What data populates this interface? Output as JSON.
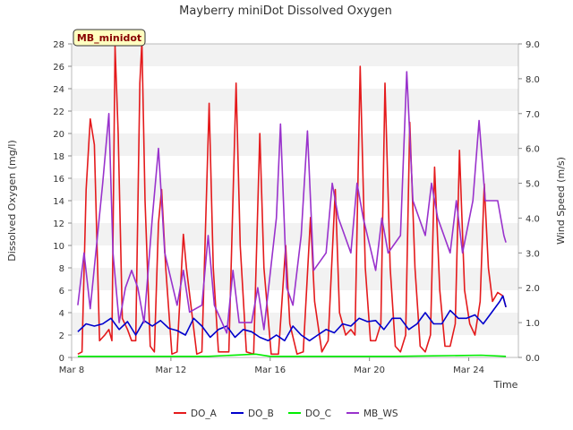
{
  "chart_data": {
    "type": "line",
    "title": "Mayberry miniDot Dissolved Oxygen",
    "xlabel": "Time",
    "ylabel": "Dissolved Oxygen (mg/l)",
    "y2label": "Wind Speed (m/s)",
    "site_label": "MB_minidot",
    "x_range": [
      "2024-03-08",
      "2024-03-26"
    ],
    "ylim": [
      0,
      28
    ],
    "y2lim": [
      0,
      9
    ],
    "x_ticks": [
      {
        "date": "2024-03-08",
        "label": "Mar 8"
      },
      {
        "date": "2024-03-12",
        "label": "Mar 12"
      },
      {
        "date": "2024-03-16",
        "label": "Mar 16"
      },
      {
        "date": "2024-03-20",
        "label": "Mar 20"
      },
      {
        "date": "2024-03-24",
        "label": "Mar 24"
      }
    ],
    "y_ticks": [
      0,
      2,
      4,
      6,
      8,
      10,
      12,
      14,
      16,
      18,
      20,
      22,
      24,
      26,
      28
    ],
    "y2_ticks": [
      "0.0",
      "1.0",
      "2.0",
      "3.0",
      "4.0",
      "5.0",
      "6.0",
      "7.0",
      "8.0",
      "9.0"
    ],
    "grid": "horizontal bands",
    "legend_position": "bottom",
    "series": [
      {
        "name": "DO_A",
        "color": "#e41a1c",
        "axis": "left",
        "points": [
          [
            "2024-03-08T06:00",
            0.3
          ],
          [
            "2024-03-08T10:00",
            0.5
          ],
          [
            "2024-03-08T14:00",
            15
          ],
          [
            "2024-03-08T18:00",
            21.3
          ],
          [
            "2024-03-08T22:00",
            19
          ],
          [
            "2024-03-09T03:00",
            1.5
          ],
          [
            "2024-03-09T08:00",
            2
          ],
          [
            "2024-03-09T12:00",
            2.5
          ],
          [
            "2024-03-09T15:00",
            1.5
          ],
          [
            "2024-03-09T18:00",
            27.8
          ],
          [
            "2024-03-09T21:00",
            20
          ],
          [
            "2024-03-10T01:00",
            3.5
          ],
          [
            "2024-03-10T06:00",
            2.5
          ],
          [
            "2024-03-10T10:00",
            1.5
          ],
          [
            "2024-03-10T14:00",
            1.5
          ],
          [
            "2024-03-10T18:00",
            24.5
          ],
          [
            "2024-03-10T20:00",
            28.2
          ],
          [
            "2024-03-10T23:00",
            14
          ],
          [
            "2024-03-11T04:00",
            1
          ],
          [
            "2024-03-11T08:00",
            0.5
          ],
          [
            "2024-03-11T12:00",
            12
          ],
          [
            "2024-03-11T15:00",
            15
          ],
          [
            "2024-03-11T19:00",
            8
          ],
          [
            "2024-03-12T01:00",
            0.3
          ],
          [
            "2024-03-12T06:00",
            0.5
          ],
          [
            "2024-03-12T12:00",
            11
          ],
          [
            "2024-03-12T15:00",
            8
          ],
          [
            "2024-03-13T01:00",
            0.3
          ],
          [
            "2024-03-13T06:00",
            0.5
          ],
          [
            "2024-03-13T13:00",
            22.7
          ],
          [
            "2024-03-13T17:00",
            8
          ],
          [
            "2024-03-13T22:00",
            0.5
          ],
          [
            "2024-03-14T08:00",
            0.5
          ],
          [
            "2024-03-14T15:00",
            24.5
          ],
          [
            "2024-03-14T19:00",
            10
          ],
          [
            "2024-03-15T01:00",
            0.5
          ],
          [
            "2024-03-15T08:00",
            0.3
          ],
          [
            "2024-03-15T14:00",
            20
          ],
          [
            "2024-03-15T18:00",
            8
          ],
          [
            "2024-03-16T01:00",
            0.3
          ],
          [
            "2024-03-16T08:00",
            0.3
          ],
          [
            "2024-03-16T15:00",
            10
          ],
          [
            "2024-03-16T19:00",
            3
          ],
          [
            "2024-03-17T02:00",
            0.3
          ],
          [
            "2024-03-17T08:00",
            0.5
          ],
          [
            "2024-03-17T15:00",
            12.5
          ],
          [
            "2024-03-17T19:00",
            5
          ],
          [
            "2024-03-18T02:00",
            0.5
          ],
          [
            "2024-03-18T08:00",
            1.5
          ],
          [
            "2024-03-18T15:00",
            15
          ],
          [
            "2024-03-18T19:00",
            4
          ],
          [
            "2024-03-19T01:00",
            2
          ],
          [
            "2024-03-19T06:00",
            2.5
          ],
          [
            "2024-03-19T10:00",
            2
          ],
          [
            "2024-03-19T15:00",
            26
          ],
          [
            "2024-03-19T20:00",
            8
          ],
          [
            "2024-03-20T01:00",
            1.5
          ],
          [
            "2024-03-20T06:00",
            1.5
          ],
          [
            "2024-03-20T11:00",
            3
          ],
          [
            "2024-03-20T15:00",
            24.5
          ],
          [
            "2024-03-20T20:00",
            8
          ],
          [
            "2024-03-21T01:00",
            1
          ],
          [
            "2024-03-21T06:00",
            0.5
          ],
          [
            "2024-03-21T11:00",
            2
          ],
          [
            "2024-03-21T15:00",
            21
          ],
          [
            "2024-03-21T20:00",
            8
          ],
          [
            "2024-03-22T01:00",
            1
          ],
          [
            "2024-03-22T06:00",
            0.5
          ],
          [
            "2024-03-22T11:00",
            2
          ],
          [
            "2024-03-22T15:00",
            17
          ],
          [
            "2024-03-22T20:00",
            6
          ],
          [
            "2024-03-23T01:00",
            1
          ],
          [
            "2024-03-23T06:00",
            1
          ],
          [
            "2024-03-23T11:00",
            3
          ],
          [
            "2024-03-23T15:00",
            18.5
          ],
          [
            "2024-03-23T20:00",
            6
          ],
          [
            "2024-03-24T01:00",
            3
          ],
          [
            "2024-03-24T06:00",
            2
          ],
          [
            "2024-03-24T11:00",
            5
          ],
          [
            "2024-03-24T15:00",
            15.5
          ],
          [
            "2024-03-24T19:00",
            8
          ],
          [
            "2024-03-24T23:00",
            5
          ],
          [
            "2024-03-25T04:00",
            5.8
          ],
          [
            "2024-03-25T09:00",
            5.5
          ],
          [
            "2024-03-25T12:00",
            4.5
          ]
        ]
      },
      {
        "name": "DO_B",
        "color": "#0000cc",
        "axis": "left",
        "points": [
          [
            "2024-03-08T06:00",
            2.3
          ],
          [
            "2024-03-08T14:00",
            3
          ],
          [
            "2024-03-08T22:00",
            2.8
          ],
          [
            "2024-03-09T06:00",
            3
          ],
          [
            "2024-03-09T14:00",
            3.5
          ],
          [
            "2024-03-09T22:00",
            2.5
          ],
          [
            "2024-03-10T06:00",
            3.2
          ],
          [
            "2024-03-10T14:00",
            2
          ],
          [
            "2024-03-10T22:00",
            3.3
          ],
          [
            "2024-03-11T06:00",
            2.8
          ],
          [
            "2024-03-11T14:00",
            3.3
          ],
          [
            "2024-03-11T22:00",
            2.6
          ],
          [
            "2024-03-12T06:00",
            2.4
          ],
          [
            "2024-03-12T14:00",
            2
          ],
          [
            "2024-03-12T22:00",
            3.5
          ],
          [
            "2024-03-13T06:00",
            2.8
          ],
          [
            "2024-03-13T14:00",
            1.8
          ],
          [
            "2024-03-13T22:00",
            2.5
          ],
          [
            "2024-03-14T06:00",
            2.8
          ],
          [
            "2024-03-14T14:00",
            1.8
          ],
          [
            "2024-03-14T22:00",
            2.5
          ],
          [
            "2024-03-15T06:00",
            2.3
          ],
          [
            "2024-03-15T14:00",
            1.8
          ],
          [
            "2024-03-15T22:00",
            1.5
          ],
          [
            "2024-03-16T06:00",
            2
          ],
          [
            "2024-03-16T14:00",
            1.5
          ],
          [
            "2024-03-16T22:00",
            2.8
          ],
          [
            "2024-03-17T06:00",
            2
          ],
          [
            "2024-03-17T14:00",
            1.5
          ],
          [
            "2024-03-17T22:00",
            2
          ],
          [
            "2024-03-18T06:00",
            2.5
          ],
          [
            "2024-03-18T14:00",
            2.2
          ],
          [
            "2024-03-18T22:00",
            3
          ],
          [
            "2024-03-19T06:00",
            2.8
          ],
          [
            "2024-03-19T14:00",
            3.5
          ],
          [
            "2024-03-19T22:00",
            3.2
          ],
          [
            "2024-03-20T06:00",
            3.3
          ],
          [
            "2024-03-20T14:00",
            2.5
          ],
          [
            "2024-03-20T22:00",
            3.5
          ],
          [
            "2024-03-21T06:00",
            3.5
          ],
          [
            "2024-03-21T14:00",
            2.5
          ],
          [
            "2024-03-21T22:00",
            3
          ],
          [
            "2024-03-22T06:00",
            4
          ],
          [
            "2024-03-22T14:00",
            3
          ],
          [
            "2024-03-22T22:00",
            3
          ],
          [
            "2024-03-23T06:00",
            4.2
          ],
          [
            "2024-03-23T14:00",
            3.5
          ],
          [
            "2024-03-23T22:00",
            3.5
          ],
          [
            "2024-03-24T06:00",
            3.8
          ],
          [
            "2024-03-24T14:00",
            3
          ],
          [
            "2024-03-24T22:00",
            4
          ],
          [
            "2024-03-25T06:00",
            5
          ],
          [
            "2024-03-25T09:00",
            5.5
          ],
          [
            "2024-03-25T12:00",
            4.5
          ]
        ]
      },
      {
        "name": "DO_C",
        "color": "#00ee00",
        "axis": "left",
        "points": [
          [
            "2024-03-08T06:00",
            0.1
          ],
          [
            "2024-03-10T12:00",
            0.1
          ],
          [
            "2024-03-13T12:00",
            0.1
          ],
          [
            "2024-03-15T10:00",
            0.3
          ],
          [
            "2024-03-16T00:00",
            0.1
          ],
          [
            "2024-03-21T00:00",
            0.1
          ],
          [
            "2024-03-24T12:00",
            0.2
          ],
          [
            "2024-03-25T12:00",
            0.1
          ]
        ]
      },
      {
        "name": "MB_WS",
        "color": "#9932cc",
        "axis": "right",
        "points": [
          [
            "2024-03-08T06:00",
            1.5
          ],
          [
            "2024-03-08T12:00",
            3
          ],
          [
            "2024-03-08T18:00",
            1.4
          ],
          [
            "2024-03-09T06:00",
            5
          ],
          [
            "2024-03-09T12:00",
            7
          ],
          [
            "2024-03-09T16:00",
            3
          ],
          [
            "2024-03-09T22:00",
            1
          ],
          [
            "2024-03-10T04:00",
            2
          ],
          [
            "2024-03-10T10:00",
            2.5
          ],
          [
            "2024-03-10T16:00",
            2
          ],
          [
            "2024-03-10T22:00",
            1
          ],
          [
            "2024-03-11T06:00",
            4
          ],
          [
            "2024-03-11T12:00",
            6
          ],
          [
            "2024-03-11T18:00",
            3
          ],
          [
            "2024-03-12T06:00",
            1.5
          ],
          [
            "2024-03-12T12:00",
            2.5
          ],
          [
            "2024-03-12T18:00",
            1.3
          ],
          [
            "2024-03-13T06:00",
            1.5
          ],
          [
            "2024-03-13T12:00",
            3.5
          ],
          [
            "2024-03-13T18:00",
            1.5
          ],
          [
            "2024-03-14T06:00",
            0.7
          ],
          [
            "2024-03-14T12:00",
            2.5
          ],
          [
            "2024-03-14T18:00",
            1
          ],
          [
            "2024-03-15T06:00",
            1
          ],
          [
            "2024-03-15T12:00",
            2
          ],
          [
            "2024-03-15T18:00",
            0.8
          ],
          [
            "2024-03-16T06:00",
            4
          ],
          [
            "2024-03-16T10:00",
            6.7
          ],
          [
            "2024-03-16T16:00",
            2
          ],
          [
            "2024-03-16T22:00",
            1.5
          ],
          [
            "2024-03-17T06:00",
            3.5
          ],
          [
            "2024-03-17T12:00",
            6.5
          ],
          [
            "2024-03-17T18:00",
            2.5
          ],
          [
            "2024-03-18T06:00",
            3
          ],
          [
            "2024-03-18T12:00",
            5
          ],
          [
            "2024-03-18T18:00",
            4
          ],
          [
            "2024-03-19T06:00",
            3
          ],
          [
            "2024-03-19T12:00",
            5
          ],
          [
            "2024-03-19T18:00",
            4
          ],
          [
            "2024-03-20T06:00",
            2.5
          ],
          [
            "2024-03-20T12:00",
            4
          ],
          [
            "2024-03-20T18:00",
            3
          ],
          [
            "2024-03-21T06:00",
            3.5
          ],
          [
            "2024-03-21T12:00",
            8.2
          ],
          [
            "2024-03-21T18:00",
            4.5
          ],
          [
            "2024-03-22T06:00",
            3.5
          ],
          [
            "2024-03-22T12:00",
            5
          ],
          [
            "2024-03-22T18:00",
            4
          ],
          [
            "2024-03-23T06:00",
            3
          ],
          [
            "2024-03-23T12:00",
            4.5
          ],
          [
            "2024-03-23T18:00",
            3
          ],
          [
            "2024-03-24T04:00",
            4.5
          ],
          [
            "2024-03-24T10:00",
            6.8
          ],
          [
            "2024-03-24T16:00",
            4.5
          ],
          [
            "2024-03-25T04:00",
            4.5
          ],
          [
            "2024-03-25T10:00",
            3.5
          ],
          [
            "2024-03-25T12:00",
            3.3
          ]
        ]
      }
    ]
  }
}
